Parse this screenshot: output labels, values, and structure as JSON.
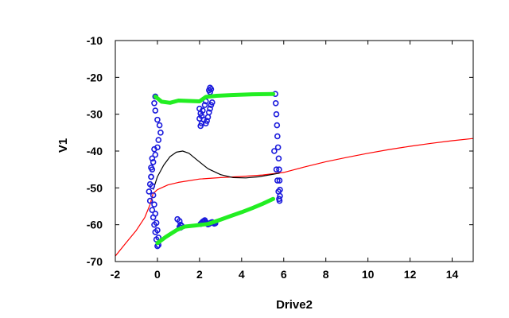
{
  "chart_data": {
    "type": "line",
    "xlabel": "Drive2",
    "ylabel": "V1",
    "xlim": [
      -2,
      15
    ],
    "ylim": [
      -70,
      -10
    ],
    "x_ticks": [
      -2,
      0,
      2,
      4,
      6,
      8,
      10,
      12,
      14
    ],
    "y_ticks": [
      -10,
      -20,
      -30,
      -40,
      -50,
      -60,
      -70
    ],
    "grid": false,
    "legend": "none",
    "series": [
      {
        "style": "line",
        "color": "#ff0000",
        "x": [
          -2,
          -1.5,
          -1,
          -0.6,
          -0.35,
          -0.2,
          0,
          0.5,
          1,
          2,
          3,
          4,
          5,
          6,
          7,
          8,
          9,
          10,
          11,
          12,
          13,
          14,
          15
        ],
        "y": [
          -68.5,
          -65,
          -61.5,
          -58,
          -54.5,
          -51.5,
          -50.5,
          -49.2,
          -48.5,
          -47.6,
          -47.2,
          -46.9,
          -46.5,
          -45.8,
          -44.3,
          -42.9,
          -41.7,
          -40.6,
          -39.6,
          -38.7,
          -37.9,
          -37.2,
          -36.6
        ]
      },
      {
        "style": "line",
        "color": "#000000",
        "x": [
          -0.2,
          0,
          0.3,
          0.6,
          0.9,
          1.2,
          1.5,
          1.9,
          2.4,
          3,
          3.6,
          4.2,
          4.8,
          5.4,
          5.8
        ],
        "y": [
          -50.5,
          -47,
          -43.8,
          -41.5,
          -40.3,
          -40,
          -40.6,
          -42.5,
          -44.8,
          -46.4,
          -47.2,
          -47.3,
          -47,
          -46.4,
          -46
        ]
      },
      {
        "style": "markers",
        "color": "#1a1adc",
        "x": [
          -0.1,
          -0.15,
          -0.1,
          0,
          0.1,
          0.15,
          0.05,
          -0.15,
          -0.25,
          -0.3,
          -0.3,
          -0.25,
          -0.2,
          -0.15,
          -0.1,
          -0.05,
          0,
          0.05,
          0.05,
          0,
          -0.05,
          -0.1,
          -0.15,
          -0.2,
          -0.25,
          -0.35,
          -0.4,
          -0.35,
          -0.3,
          -0.25,
          -0.2,
          -0.1,
          0,
          0.95,
          1.05,
          1.1,
          1.15,
          1.05,
          1.1,
          2.05,
          2.1,
          2.15,
          2.2,
          2.25,
          2.3,
          2.35,
          2.4,
          2.45,
          2.5,
          2.55,
          2.6,
          2.65,
          2.7,
          2.75,
          2.0,
          2.05,
          2.0,
          2.1,
          2.05,
          2.1,
          2.15,
          2.25,
          2.3,
          2.2,
          2.3,
          2.35,
          2.4,
          2.45,
          2.5,
          2.55,
          2.6,
          2.45,
          2.5,
          2.55,
          2.5,
          5.6,
          5.62,
          5.65,
          5.68,
          5.7,
          5.73,
          5.76,
          5.78,
          5.8,
          5.82,
          5.82,
          5.8,
          5.78,
          5.75,
          5.7,
          5.65,
          5.55
        ],
        "y": [
          -25.2,
          -27,
          -29,
          -31.5,
          -33,
          -35,
          -37,
          -39.5,
          -42,
          -44.5,
          -47,
          -49.5,
          -52,
          -54.5,
          -57,
          -59.5,
          -61.5,
          -63.5,
          -65.5,
          -65.8,
          -64,
          -62,
          -60,
          -58,
          -56,
          -53.5,
          -51,
          -49,
          -47,
          -45,
          -43,
          -41,
          -39,
          -58.5,
          -59,
          -60,
          -60.3,
          -60.6,
          -60.8,
          -59.8,
          -59.5,
          -59.2,
          -59,
          -58.8,
          -59.3,
          -59.6,
          -59.9,
          -59.8,
          -59.6,
          -59.4,
          -59.3,
          -59.5,
          -59.7,
          -59.6,
          -28.5,
          -29.8,
          -31.2,
          -32.5,
          -33.2,
          -30.5,
          -29,
          -27.5,
          -26.5,
          -31.5,
          -32.5,
          -31.8,
          -30.8,
          -29.5,
          -28.5,
          -27.5,
          -26.8,
          -23.5,
          -22.8,
          -23.2,
          -24,
          -24.5,
          -27,
          -30,
          -33,
          -36,
          -39,
          -42,
          -45,
          -48,
          -50.5,
          -52.2,
          -53.5,
          -53,
          -51,
          -48,
          -45,
          -40
        ]
      },
      {
        "style": "thick-line",
        "color": "#22ee22",
        "segments": [
          {
            "x": [
              -0.1,
              0.2,
              0.6,
              1.0,
              1.5,
              2.0,
              2.3,
              2.8,
              3.5,
              4.5,
              5.5
            ],
            "y": [
              -25.2,
              -26.6,
              -26.9,
              -26.3,
              -26.4,
              -26.5,
              -25.3,
              -25,
              -24.8,
              -24.6,
              -24.5
            ]
          },
          {
            "x": [
              0,
              0.4,
              0.9,
              1.3,
              1.8,
              2.4,
              3.0,
              3.5,
              4.0,
              4.5,
              5.0,
              5.5
            ],
            "y": [
              -65,
              -63.3,
              -61.5,
              -60.5,
              -60.2,
              -59.8,
              -58.6,
              -57.6,
              -56.6,
              -55.5,
              -54.3,
              -53
            ]
          }
        ]
      }
    ]
  }
}
